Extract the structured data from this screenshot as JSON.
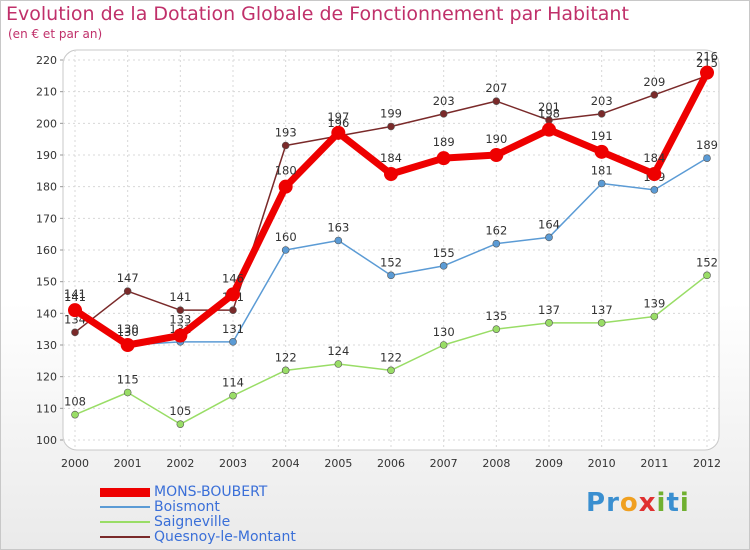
{
  "title": "Evolution de la Dotation Globale de Fonctionnement par Habitant",
  "subtitle": "(en € et par an)",
  "logo": {
    "text": "Proxiti",
    "letters": [
      "P",
      "r",
      "o",
      "x",
      "i",
      "t",
      "i"
    ],
    "colors": [
      "#3a8fd0",
      "#3a8fd0",
      "#f0a020",
      "#e03030",
      "#70b030",
      "#3a8fd0",
      "#70b030"
    ]
  },
  "chart_data": {
    "type": "line",
    "title": "Evolution de la Dotation Globale de Fonctionnement par Habitant",
    "subtitle": "(en € et par an)",
    "x": [
      "2000",
      "2001",
      "2002",
      "2003",
      "2004",
      "2005",
      "2006",
      "2007",
      "2008",
      "2009",
      "2010",
      "2011",
      "2012"
    ],
    "ylim": [
      100,
      220
    ],
    "yticks": [
      100,
      110,
      120,
      130,
      140,
      150,
      160,
      170,
      180,
      190,
      200,
      210,
      220
    ],
    "grid": true,
    "legend_position": "bottom-left",
    "series": [
      {
        "name": "Quesnoy-le-Montant",
        "color": "#7a2a2a",
        "values": [
          134,
          147,
          141,
          141,
          193,
          196,
          199,
          203,
          207,
          201,
          203,
          209,
          215
        ]
      },
      {
        "name": "Saigneville",
        "color": "#99dd66",
        "values": [
          108,
          115,
          105,
          114,
          122,
          124,
          122,
          130,
          135,
          137,
          137,
          139,
          152
        ]
      },
      {
        "name": "Boismont",
        "color": "#5b9bd5",
        "values": [
          141,
          130,
          131,
          131,
          160,
          163,
          152,
          155,
          162,
          164,
          181,
          179,
          189
        ]
      },
      {
        "name": "MONS-BOUBERT",
        "color": "#ee0000",
        "values": [
          141,
          130,
          133,
          146,
          180,
          197,
          184,
          189,
          190,
          198,
          191,
          184,
          216
        ]
      }
    ],
    "legend": [
      "MONS-BOUBERT",
      "Boismont",
      "Saigneville",
      "Quesnoy-le-Montant"
    ]
  }
}
